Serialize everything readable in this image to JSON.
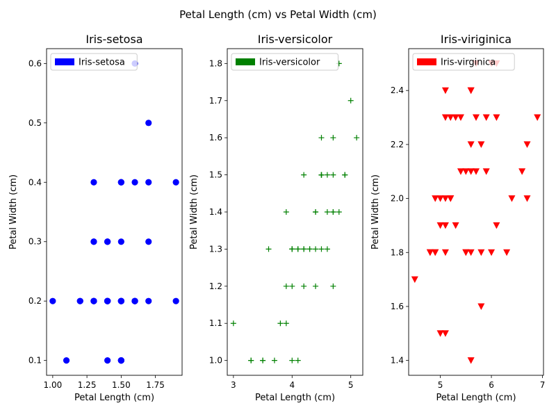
{
  "suptitle": "Petal Length (cm) vs Petal Width (cm)",
  "chart_data": [
    {
      "type": "scatter",
      "title": "Iris-setosa",
      "xlabel": "Petal Length (cm)",
      "ylabel": "Petal Width (cm)",
      "xlim": [
        0.955,
        1.945
      ],
      "ylim": [
        0.075,
        0.625
      ],
      "xticks": [
        1.0,
        1.25,
        1.5,
        1.75
      ],
      "xticklabels": [
        "1.00",
        "1.25",
        "1.50",
        "1.75"
      ],
      "yticks": [
        0.1,
        0.2,
        0.3,
        0.4,
        0.5,
        0.6
      ],
      "yticklabels": [
        "0.1",
        "0.2",
        "0.3",
        "0.4",
        "0.5",
        "0.6"
      ],
      "legend": {
        "label": "Iris-setosa",
        "location": "upper left"
      },
      "marker": "circle",
      "color": "#0000ff",
      "points": [
        [
          1.4,
          0.2
        ],
        [
          1.4,
          0.2
        ],
        [
          1.3,
          0.2
        ],
        [
          1.5,
          0.2
        ],
        [
          1.4,
          0.2
        ],
        [
          1.7,
          0.4
        ],
        [
          1.4,
          0.3
        ],
        [
          1.5,
          0.2
        ],
        [
          1.4,
          0.2
        ],
        [
          1.5,
          0.1
        ],
        [
          1.5,
          0.2
        ],
        [
          1.6,
          0.2
        ],
        [
          1.4,
          0.1
        ],
        [
          1.1,
          0.1
        ],
        [
          1.2,
          0.2
        ],
        [
          1.5,
          0.4
        ],
        [
          1.3,
          0.4
        ],
        [
          1.4,
          0.3
        ],
        [
          1.7,
          0.3
        ],
        [
          1.5,
          0.3
        ],
        [
          1.7,
          0.2
        ],
        [
          1.5,
          0.4
        ],
        [
          1.0,
          0.2
        ],
        [
          1.7,
          0.5
        ],
        [
          1.9,
          0.2
        ],
        [
          1.6,
          0.2
        ],
        [
          1.6,
          0.4
        ],
        [
          1.5,
          0.2
        ],
        [
          1.4,
          0.2
        ],
        [
          1.6,
          0.2
        ],
        [
          1.6,
          0.2
        ],
        [
          1.5,
          0.4
        ],
        [
          1.5,
          0.1
        ],
        [
          1.4,
          0.2
        ],
        [
          1.5,
          0.1
        ],
        [
          1.2,
          0.2
        ],
        [
          1.3,
          0.2
        ],
        [
          1.5,
          0.1
        ],
        [
          1.3,
          0.2
        ],
        [
          1.5,
          0.2
        ],
        [
          1.3,
          0.3
        ],
        [
          1.3,
          0.3
        ],
        [
          1.3,
          0.2
        ],
        [
          1.6,
          0.6
        ],
        [
          1.9,
          0.4
        ],
        [
          1.4,
          0.3
        ],
        [
          1.6,
          0.2
        ],
        [
          1.4,
          0.2
        ],
        [
          1.5,
          0.2
        ],
        [
          1.4,
          0.2
        ]
      ]
    },
    {
      "type": "scatter",
      "title": "Iris-versicolor",
      "xlabel": "Petal Length (cm)",
      "ylabel": "Petal Width (cm)",
      "xlim": [
        2.895,
        5.205
      ],
      "ylim": [
        0.96,
        1.84
      ],
      "xticks": [
        3,
        4,
        5
      ],
      "xticklabels": [
        "3",
        "4",
        "5"
      ],
      "yticks": [
        1.0,
        1.1,
        1.2,
        1.3,
        1.4,
        1.5,
        1.6,
        1.7,
        1.8
      ],
      "yticklabels": [
        "1.0",
        "1.1",
        "1.2",
        "1.3",
        "1.4",
        "1.5",
        "1.6",
        "1.7",
        "1.8"
      ],
      "legend": {
        "label": "Iris-versicolor",
        "location": "upper left"
      },
      "marker": "plus",
      "color": "#008000",
      "points": [
        [
          4.7,
          1.4
        ],
        [
          4.5,
          1.5
        ],
        [
          4.9,
          1.5
        ],
        [
          4.0,
          1.3
        ],
        [
          4.6,
          1.5
        ],
        [
          4.5,
          1.3
        ],
        [
          4.7,
          1.6
        ],
        [
          3.3,
          1.0
        ],
        [
          4.6,
          1.3
        ],
        [
          3.9,
          1.4
        ],
        [
          3.5,
          1.0
        ],
        [
          4.2,
          1.5
        ],
        [
          4.0,
          1.0
        ],
        [
          4.7,
          1.4
        ],
        [
          3.6,
          1.3
        ],
        [
          4.4,
          1.4
        ],
        [
          4.5,
          1.5
        ],
        [
          4.1,
          1.0
        ],
        [
          4.5,
          1.5
        ],
        [
          3.9,
          1.1
        ],
        [
          4.8,
          1.8
        ],
        [
          4.0,
          1.3
        ],
        [
          4.9,
          1.5
        ],
        [
          4.7,
          1.2
        ],
        [
          4.3,
          1.3
        ],
        [
          4.4,
          1.4
        ],
        [
          4.8,
          1.4
        ],
        [
          5.0,
          1.7
        ],
        [
          4.5,
          1.5
        ],
        [
          3.5,
          1.0
        ],
        [
          3.8,
          1.1
        ],
        [
          3.7,
          1.0
        ],
        [
          3.9,
          1.2
        ],
        [
          5.1,
          1.6
        ],
        [
          4.5,
          1.5
        ],
        [
          4.5,
          1.6
        ],
        [
          4.7,
          1.5
        ],
        [
          4.4,
          1.3
        ],
        [
          4.1,
          1.3
        ],
        [
          4.0,
          1.3
        ],
        [
          4.4,
          1.2
        ],
        [
          4.6,
          1.4
        ],
        [
          4.0,
          1.2
        ],
        [
          3.3,
          1.0
        ],
        [
          4.2,
          1.3
        ],
        [
          4.2,
          1.2
        ],
        [
          4.2,
          1.3
        ],
        [
          4.3,
          1.3
        ],
        [
          3.0,
          1.1
        ],
        [
          4.1,
          1.3
        ]
      ]
    },
    {
      "type": "scatter",
      "title": "Iris-viriginica",
      "xlabel": "Petal Length (cm)",
      "ylabel": "Petal Width (cm)",
      "xlim": [
        4.38,
        7.02
      ],
      "ylim": [
        1.345,
        2.555
      ],
      "xticks": [
        5,
        6,
        7
      ],
      "xticklabels": [
        "5",
        "6",
        "7"
      ],
      "yticks": [
        1.4,
        1.6,
        1.8,
        2.0,
        2.2,
        2.4
      ],
      "yticklabels": [
        "1.4",
        "1.6",
        "1.8",
        "2.0",
        "2.2",
        "2.4"
      ],
      "legend": {
        "label": "Iris-virginica",
        "location": "upper left"
      },
      "marker": "triangle-down",
      "color": "#ff0000",
      "points": [
        [
          6.0,
          2.5
        ],
        [
          5.1,
          1.9
        ],
        [
          5.9,
          2.1
        ],
        [
          5.6,
          1.8
        ],
        [
          5.8,
          2.2
        ],
        [
          6.6,
          2.1
        ],
        [
          4.5,
          1.7
        ],
        [
          6.3,
          1.8
        ],
        [
          5.8,
          1.8
        ],
        [
          6.1,
          2.5
        ],
        [
          5.1,
          2.0
        ],
        [
          5.3,
          1.9
        ],
        [
          5.5,
          2.1
        ],
        [
          5.0,
          2.0
        ],
        [
          5.1,
          2.4
        ],
        [
          5.3,
          2.3
        ],
        [
          5.5,
          1.8
        ],
        [
          6.7,
          2.2
        ],
        [
          6.9,
          2.3
        ],
        [
          5.0,
          1.5
        ],
        [
          5.7,
          2.3
        ],
        [
          4.9,
          2.0
        ],
        [
          6.7,
          2.0
        ],
        [
          4.9,
          1.8
        ],
        [
          5.7,
          2.1
        ],
        [
          6.0,
          1.8
        ],
        [
          4.8,
          1.8
        ],
        [
          4.9,
          1.8
        ],
        [
          5.6,
          2.1
        ],
        [
          5.8,
          1.6
        ],
        [
          6.1,
          1.9
        ],
        [
          6.4,
          2.0
        ],
        [
          5.6,
          2.2
        ],
        [
          5.1,
          1.5
        ],
        [
          5.6,
          1.4
        ],
        [
          6.1,
          2.3
        ],
        [
          5.6,
          2.4
        ],
        [
          5.5,
          1.8
        ],
        [
          4.8,
          1.8
        ],
        [
          5.4,
          2.1
        ],
        [
          5.6,
          2.4
        ],
        [
          5.1,
          2.3
        ],
        [
          5.9,
          2.3
        ],
        [
          5.7,
          2.5
        ],
        [
          5.2,
          2.3
        ],
        [
          5.0,
          1.9
        ],
        [
          5.2,
          2.0
        ],
        [
          5.4,
          2.3
        ],
        [
          5.1,
          1.8
        ],
        [
          5.2,
          2.0
        ]
      ]
    }
  ]
}
